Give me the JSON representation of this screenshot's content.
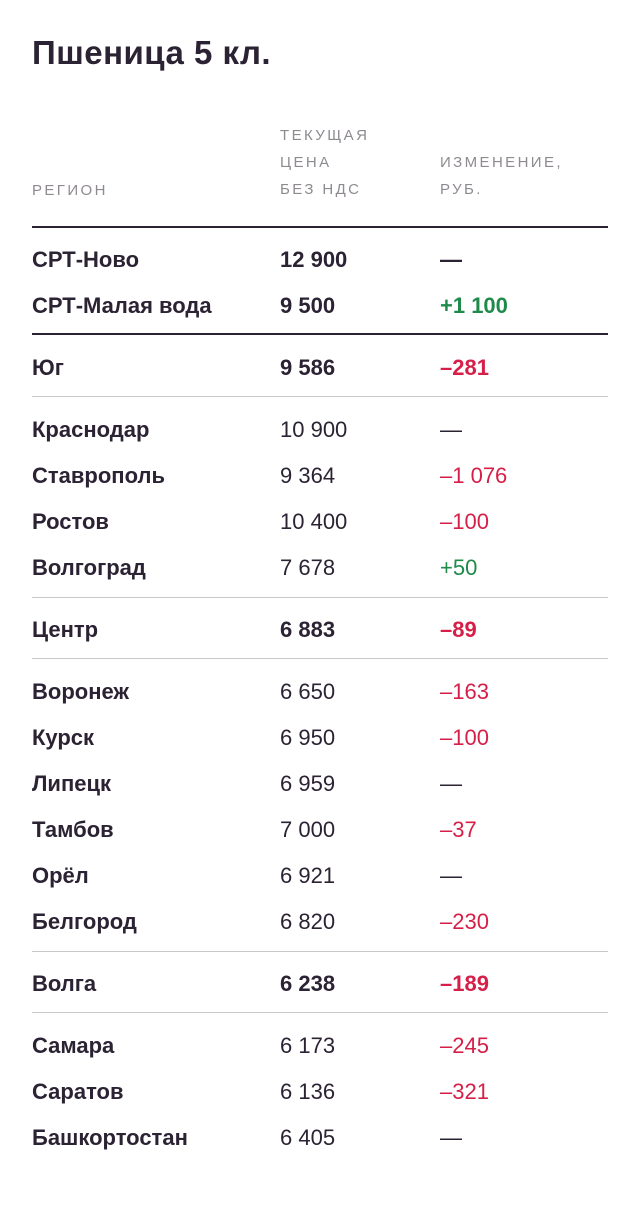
{
  "title": "Пшеница 5 кл.",
  "headers": {
    "region": "РЕГИОН",
    "price_line1": "ТЕКУЩАЯ",
    "price_line2": "ЦЕНА",
    "price_line3": "БЕЗ НДС",
    "change_line1": "ИЗМЕНЕНИЕ,",
    "change_line2": "РУБ."
  },
  "colors": {
    "text": "#2b2333",
    "negative": "#d61f48",
    "positive": "#1f8a4a",
    "header": "#8e8a90"
  },
  "rows": [
    {
      "region": "СРТ-Ново",
      "price": "12 900",
      "change": "—",
      "trend": "neutral",
      "bold": true
    },
    {
      "region": "СРТ-Малая вода",
      "price": "9 500",
      "change": "+1 100",
      "trend": "positive",
      "bold": true
    },
    {
      "region": "Юг",
      "price": "9 586",
      "change": "–281",
      "trend": "negative",
      "bold": true
    },
    {
      "region": "Краснодар",
      "price": "10 900",
      "change": "—",
      "trend": "neutral",
      "bold": false
    },
    {
      "region": "Ставрополь",
      "price": "9 364",
      "change": "–1 076",
      "trend": "negative",
      "bold": false
    },
    {
      "region": "Ростов",
      "price": "10 400",
      "change": "–100",
      "trend": "negative",
      "bold": false
    },
    {
      "region": "Волгоград",
      "price": "7 678",
      "change": "+50",
      "trend": "positive",
      "bold": false
    },
    {
      "region": "Центр",
      "price": "6 883",
      "change": "–89",
      "trend": "negative",
      "bold": true
    },
    {
      "region": "Воронеж",
      "price": "6 650",
      "change": "–163",
      "trend": "negative",
      "bold": false
    },
    {
      "region": "Курск",
      "price": "6 950",
      "change": "–100",
      "trend": "negative",
      "bold": false
    },
    {
      "region": "Липецк",
      "price": "6 959",
      "change": "—",
      "trend": "neutral",
      "bold": false
    },
    {
      "region": "Тамбов",
      "price": "7 000",
      "change": "–37",
      "trend": "negative",
      "bold": false
    },
    {
      "region": "Орёл",
      "price": "6 921",
      "change": "—",
      "trend": "neutral",
      "bold": false
    },
    {
      "region": "Белгород",
      "price": "6 820",
      "change": "–230",
      "trend": "negative",
      "bold": false
    },
    {
      "region": "Волга",
      "price": "6 238",
      "change": "–189",
      "trend": "negative",
      "bold": true
    },
    {
      "region": "Самара",
      "price": "6 173",
      "change": "–245",
      "trend": "negative",
      "bold": false
    },
    {
      "region": "Саратов",
      "price": "6 136",
      "change": "–321",
      "trend": "negative",
      "bold": false
    },
    {
      "region": "Башкортостан",
      "price": "6 405",
      "change": "—",
      "trend": "neutral",
      "bold": false
    }
  ]
}
